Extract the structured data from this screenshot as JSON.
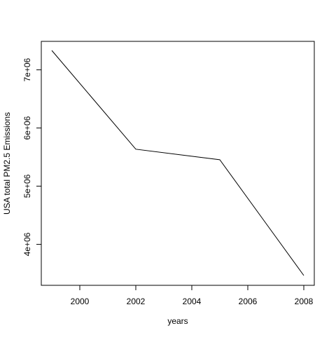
{
  "chart_data": {
    "type": "line",
    "title": "",
    "xlabel": "years",
    "ylabel": "USA total PM2.5 Emissions",
    "x": [
      1999,
      2002,
      2005,
      2008
    ],
    "series": [
      {
        "values": [
          7332967,
          5635780,
          5454703,
          3464206
        ]
      }
    ],
    "xlim": [
      1999,
      2008
    ],
    "ylim": [
      3464206,
      7332967
    ],
    "x_ticks": [
      2000,
      2002,
      2004,
      2006,
      2008
    ],
    "x_tick_labels": [
      "2000",
      "2002",
      "2004",
      "2006",
      "2008"
    ],
    "y_ticks": [
      4000000,
      5000000,
      6000000,
      7000000
    ],
    "y_tick_labels": [
      "4e+06",
      "5e+06",
      "6e+06",
      "7e+06"
    ],
    "grid": false,
    "legend": "none",
    "line_color": "#000000"
  }
}
